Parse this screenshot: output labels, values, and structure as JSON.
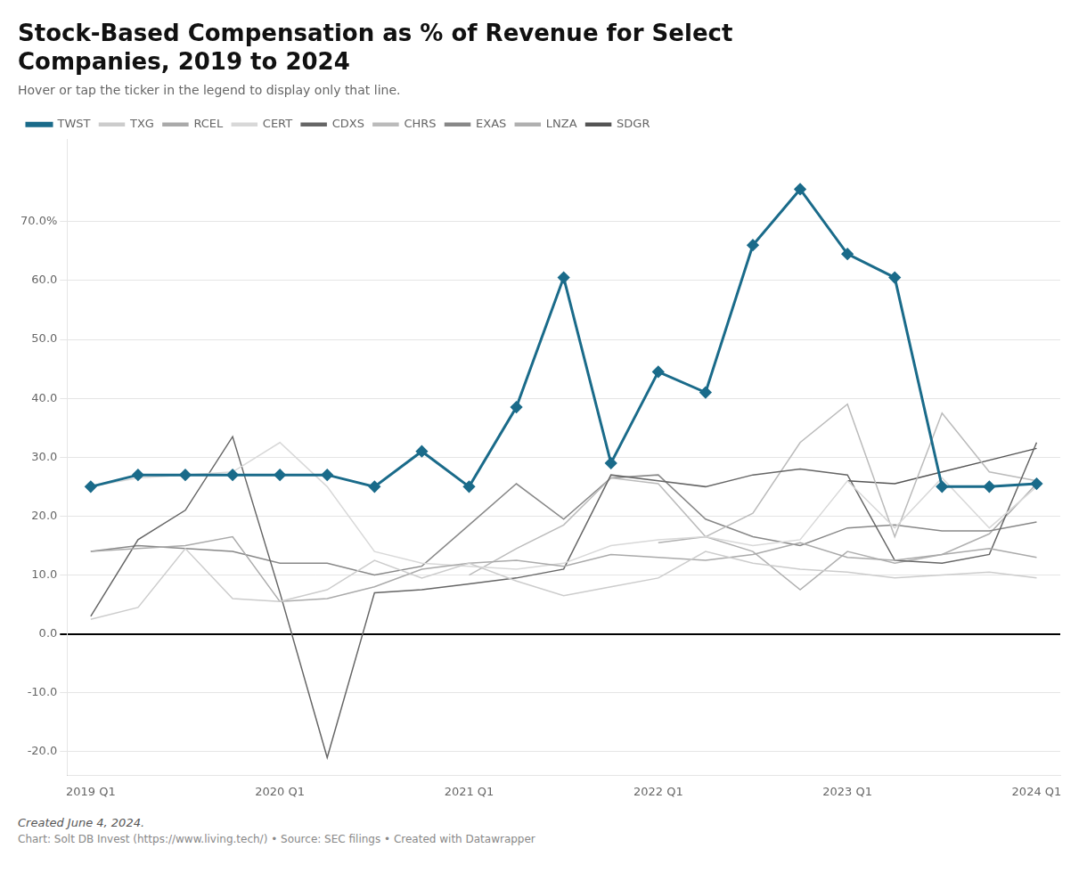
{
  "chart_data": {
    "type": "line",
    "title": "Stock-Based Compensation as % of Revenue for Select\nCompanies, 2019 to 2024",
    "subtitle": "Hover or tap the ticker in the legend to display only that line.",
    "annotations": [
      "Created June 4, 2024.",
      "Chart: Solt DB Invest (https://www.living.tech/) • Source: SEC filings • Created with Datawrapper"
    ],
    "categories": [
      "2019 Q1",
      null,
      null,
      null,
      "2020 Q1",
      null,
      null,
      null,
      "2021 Q1",
      null,
      null,
      null,
      "2022 Q1",
      null,
      null,
      null,
      "2023 Q1",
      null,
      null,
      null,
      "2024 Q1"
    ],
    "ylim": [
      -24,
      84
    ],
    "yticks": [
      {
        "value": -20,
        "label": "-20.0"
      },
      {
        "value": -10,
        "label": "-10.0"
      },
      {
        "value": 0,
        "label": "0.0"
      },
      {
        "value": 10,
        "label": "10.0"
      },
      {
        "value": 20,
        "label": "20.0"
      },
      {
        "value": 30,
        "label": "30.0"
      },
      {
        "value": 40,
        "label": "40.0"
      },
      {
        "value": 50,
        "label": "50.0"
      },
      {
        "value": 60,
        "label": "60.0"
      },
      {
        "value": 70,
        "label": "70.0%"
      }
    ],
    "grid": true,
    "legend": "top-left",
    "series": [
      {
        "name": "TXG",
        "color": "#cccccc",
        "values": [
          2.5,
          4.5,
          14.5,
          6.0,
          5.5,
          7.5,
          12.5,
          9.5,
          12.0,
          9.0,
          6.5,
          8.0,
          9.5,
          14.0,
          12.0,
          11.0,
          10.5,
          9.5,
          10.0,
          10.5,
          9.5
        ]
      },
      {
        "name": "RCEL",
        "color": "#aaaaaa",
        "values": [
          14.0,
          14.5,
          15.0,
          16.5,
          5.5,
          6.0,
          8.0,
          11.0,
          12.0,
          12.5,
          11.5,
          13.5,
          13.0,
          12.5,
          13.5,
          15.5,
          13.0,
          12.5,
          13.5,
          14.5,
          13.0
        ]
      },
      {
        "name": "CERT",
        "color": "#d8d8d8",
        "values": [
          25.0,
          26.5,
          27.0,
          27.5,
          32.5,
          25.0,
          14.0,
          12.0,
          11.5,
          11.0,
          12.0,
          15.0,
          16.0,
          16.5,
          15.0,
          16.0,
          26.0,
          18.0,
          26.5,
          18.0,
          25.0
        ]
      },
      {
        "name": "CDXS",
        "color": "#666666",
        "values": [
          3.0,
          16.0,
          21.0,
          33.5,
          7.0,
          -21.0,
          7.0,
          7.5,
          8.5,
          9.5,
          11.0,
          27.0,
          26.0,
          25.0,
          27.0,
          28.0,
          27.0,
          12.5,
          12.0,
          13.5,
          32.5
        ]
      },
      {
        "name": "CHRS",
        "color": "#bbbbbb",
        "values": [
          null,
          null,
          null,
          null,
          null,
          null,
          null,
          null,
          10.0,
          14.5,
          18.5,
          26.5,
          25.5,
          16.5,
          20.5,
          32.5,
          39.0,
          16.5,
          37.5,
          27.5,
          26.0
        ]
      },
      {
        "name": "EXAS",
        "color": "#888888",
        "values": [
          14.0,
          15.0,
          14.5,
          14.0,
          12.0,
          12.0,
          10.0,
          11.5,
          18.5,
          25.5,
          19.5,
          26.5,
          27.0,
          19.5,
          16.5,
          15.0,
          18.0,
          18.5,
          17.5,
          17.5,
          19.0
        ]
      },
      {
        "name": "LNZA",
        "color": "#b0b0b0",
        "values": [
          null,
          null,
          null,
          null,
          null,
          null,
          null,
          null,
          null,
          null,
          null,
          null,
          15.5,
          16.5,
          14.0,
          7.5,
          14.0,
          12.0,
          13.5,
          17.0,
          25.5
        ]
      },
      {
        "name": "SDGR",
        "color": "#555555",
        "values": [
          null,
          null,
          null,
          null,
          null,
          null,
          null,
          null,
          null,
          null,
          null,
          null,
          null,
          null,
          null,
          null,
          26.0,
          25.5,
          27.5,
          29.5,
          31.5
        ]
      },
      {
        "name": "TWST",
        "color": "#1a6b8a",
        "marker": "diamond",
        "values": [
          25.0,
          27.0,
          27.0,
          27.0,
          27.0,
          27.0,
          25.0,
          31.0,
          25.0,
          38.5,
          60.5,
          29.0,
          44.5,
          41.0,
          66.0,
          75.5,
          64.5,
          60.5,
          25.0,
          25.0,
          25.5
        ]
      }
    ]
  }
}
